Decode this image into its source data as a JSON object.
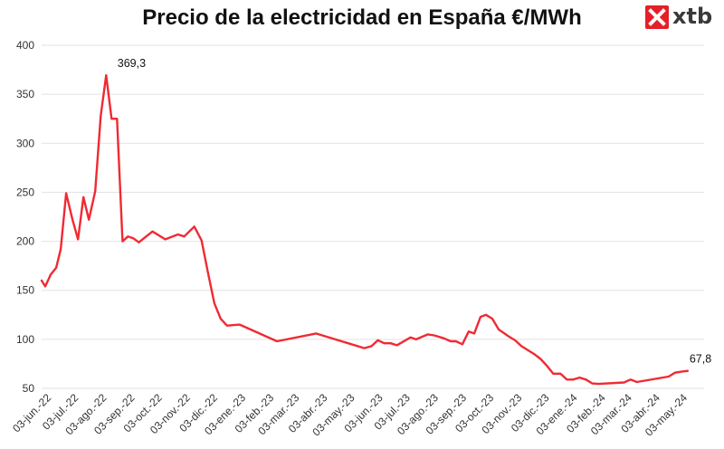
{
  "header": {
    "logo_text": "xtb"
  },
  "colors": {
    "series": "#f02a33",
    "grid": "#e2e2e2",
    "logo": "#e41f28"
  },
  "chart_data": {
    "type": "line",
    "title": "Precio de la electricidad en España €/MWh",
    "xlabel": "",
    "ylabel": "",
    "ylim": [
      50,
      400
    ],
    "y_ticks": [
      50,
      100,
      150,
      200,
      250,
      300,
      350,
      400
    ],
    "grid": "horizontal",
    "legend": "none",
    "x_ticks": [
      "03-jun.-22",
      "03-jul.-22",
      "03-ago.-22",
      "03-sep.-22",
      "03-oct.-22",
      "03-nov.-22",
      "03-dic.-22",
      "03-ene.-23",
      "03-feb.-23",
      "03-mar.-23",
      "03-abr.-23",
      "03-may.-23",
      "03-jun.-23",
      "03-jul.-23",
      "03-ago.-23",
      "03-sep.-23",
      "03-oct.-23",
      "03-nov.-23",
      "03-dic.-23",
      "03-ene.-24",
      "03-feb.-24",
      "03-mar.-24",
      "03-abr.-24",
      "03-may.-24"
    ],
    "annotations": [
      {
        "x": "2022-09-10",
        "y": 369.3,
        "text": "369,3"
      },
      {
        "x": "2024-05-31",
        "y": 67.8,
        "text": "67,8"
      }
    ],
    "series": [
      {
        "points": [
          [
            "2022-06-03",
            160
          ],
          [
            "2022-06-07",
            154
          ],
          [
            "2022-06-13",
            166
          ],
          [
            "2022-06-19",
            173
          ],
          [
            "2022-06-24",
            192
          ],
          [
            "2022-06-30",
            249
          ],
          [
            "2022-07-07",
            222
          ],
          [
            "2022-07-13",
            202
          ],
          [
            "2022-07-19",
            245
          ],
          [
            "2022-07-25",
            222
          ],
          [
            "2022-08-01",
            251
          ],
          [
            "2022-08-07",
            328
          ],
          [
            "2022-08-13",
            369.3
          ],
          [
            "2022-08-19",
            325
          ],
          [
            "2022-08-25",
            325
          ],
          [
            "2022-08-31",
            200
          ],
          [
            "2022-09-06",
            205
          ],
          [
            "2022-09-12",
            203
          ],
          [
            "2022-09-18",
            199
          ],
          [
            "2022-10-03",
            210
          ],
          [
            "2022-10-17",
            202
          ],
          [
            "2022-10-31",
            207
          ],
          [
            "2022-11-07",
            205
          ],
          [
            "2022-11-18",
            215
          ],
          [
            "2022-11-26",
            201
          ],
          [
            "2022-12-03",
            168
          ],
          [
            "2022-12-10",
            137
          ],
          [
            "2022-12-17",
            121
          ],
          [
            "2022-12-24",
            114
          ],
          [
            "2023-01-07",
            115
          ],
          [
            "2023-02-17",
            98
          ],
          [
            "2023-04-01",
            106
          ],
          [
            "2023-05-24",
            91
          ],
          [
            "2023-06-01",
            93
          ],
          [
            "2023-06-08",
            99
          ],
          [
            "2023-06-15",
            96
          ],
          [
            "2023-06-22",
            96
          ],
          [
            "2023-06-29",
            94
          ],
          [
            "2023-07-14",
            102
          ],
          [
            "2023-07-20",
            100
          ],
          [
            "2023-08-02",
            105
          ],
          [
            "2023-08-09",
            104
          ],
          [
            "2023-08-20",
            101
          ],
          [
            "2023-08-27",
            98
          ],
          [
            "2023-09-02",
            98
          ],
          [
            "2023-09-09",
            95
          ],
          [
            "2023-09-16",
            108
          ],
          [
            "2023-09-22",
            106
          ],
          [
            "2023-09-29",
            123
          ],
          [
            "2023-10-05",
            125
          ],
          [
            "2023-10-12",
            121
          ],
          [
            "2023-10-19",
            110
          ],
          [
            "2023-10-30",
            103
          ],
          [
            "2023-11-06",
            99
          ],
          [
            "2023-11-13",
            93
          ],
          [
            "2023-11-27",
            85
          ],
          [
            "2023-12-04",
            80
          ],
          [
            "2023-12-11",
            73
          ],
          [
            "2023-12-18",
            65
          ],
          [
            "2023-12-26",
            65
          ],
          [
            "2024-01-02",
            59
          ],
          [
            "2024-01-09",
            59
          ],
          [
            "2024-01-16",
            61
          ],
          [
            "2024-01-23",
            59
          ],
          [
            "2024-01-30",
            55
          ],
          [
            "2024-02-06",
            54.5
          ],
          [
            "2024-03-05",
            56
          ],
          [
            "2024-03-12",
            59
          ],
          [
            "2024-03-19",
            56.5
          ],
          [
            "2024-04-23",
            62
          ],
          [
            "2024-04-30",
            66
          ],
          [
            "2024-05-07",
            67
          ],
          [
            "2024-05-14",
            67.8
          ]
        ]
      }
    ]
  }
}
